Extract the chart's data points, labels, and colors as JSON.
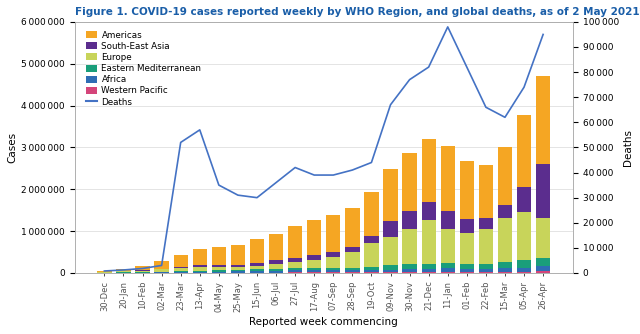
{
  "title": "Figure 1. COVID-19 cases reported weekly by WHO Region, and global deaths, as of 2 May 2021**",
  "xlabel": "Reported week commencing",
  "ylabel_left": "Cases",
  "ylabel_right": "Deaths",
  "title_color": "#1A5EA8",
  "title_fontsize": 7.5,
  "x_labels": [
    "30-Dec",
    "20-Jan",
    "10-Feb",
    "02-Mar",
    "23-Mar",
    "13-Apr",
    "04-May",
    "25-May",
    "15-Jun",
    "06-Jul",
    "27-Jul",
    "17-Aug",
    "07-Sep",
    "28-Sep",
    "19-Oct",
    "09-Nov",
    "30-Nov",
    "21-Dec",
    "11-Jan",
    "01-Feb",
    "22-Feb",
    "15-Mar",
    "05-Apr",
    "26-Apr"
  ],
  "americas": [
    30000,
    60000,
    100000,
    180000,
    280000,
    380000,
    430000,
    480000,
    560000,
    640000,
    760000,
    840000,
    880000,
    920000,
    1050000,
    1250000,
    1380000,
    1500000,
    1550000,
    1380000,
    1250000,
    1380000,
    1700000,
    2100000
  ],
  "south_east_asia": [
    3000,
    5000,
    8000,
    14000,
    22000,
    30000,
    35000,
    45000,
    65000,
    85000,
    100000,
    110000,
    120000,
    130000,
    160000,
    380000,
    430000,
    420000,
    430000,
    350000,
    270000,
    310000,
    600000,
    1300000
  ],
  "europe": [
    15000,
    25000,
    40000,
    65000,
    80000,
    100000,
    80000,
    70000,
    80000,
    110000,
    150000,
    190000,
    260000,
    360000,
    560000,
    660000,
    850000,
    1050000,
    830000,
    730000,
    830000,
    1050000,
    1150000,
    950000
  ],
  "eastern_mediterranean": [
    4000,
    6000,
    9000,
    14000,
    22000,
    32000,
    40000,
    44000,
    48000,
    52000,
    56000,
    60000,
    65000,
    70000,
    85000,
    110000,
    120000,
    120000,
    115000,
    115000,
    125000,
    150000,
    185000,
    210000
  ],
  "africa": [
    1500,
    2500,
    4000,
    6500,
    10000,
    15000,
    20000,
    28000,
    40000,
    44000,
    48000,
    50000,
    46000,
    46000,
    52000,
    62000,
    70000,
    80000,
    88000,
    78000,
    68000,
    80000,
    96000,
    118000
  ],
  "western_pacific": [
    2500,
    3500,
    4500,
    5500,
    6500,
    7500,
    8000,
    9000,
    10000,
    11000,
    12000,
    13000,
    14000,
    15000,
    17000,
    19000,
    23000,
    26000,
    28000,
    28000,
    28000,
    30000,
    33000,
    38000
  ],
  "deaths": [
    800,
    1200,
    1800,
    3000,
    52000,
    57000,
    35000,
    31000,
    30000,
    36000,
    42000,
    39000,
    39000,
    41000,
    44000,
    67000,
    77000,
    82000,
    98000,
    82000,
    66000,
    62000,
    74000,
    95000
  ],
  "colors": {
    "americas": "#F5A623",
    "south_east_asia": "#5B2D8E",
    "europe": "#C8D45A",
    "eastern_mediterranean": "#1A9E7A",
    "africa": "#2E6DB4",
    "western_pacific": "#D4457A",
    "deaths": "#4472C4"
  },
  "ylim_left": [
    0,
    6000000
  ],
  "ylim_right": [
    0,
    100000
  ],
  "yticks_left": [
    0,
    1000000,
    2000000,
    3000000,
    4000000,
    5000000,
    6000000
  ],
  "yticks_right": [
    0,
    10000,
    20000,
    30000,
    40000,
    50000,
    60000,
    70000,
    80000,
    90000,
    100000
  ],
  "background_color": "#FFFFFF"
}
